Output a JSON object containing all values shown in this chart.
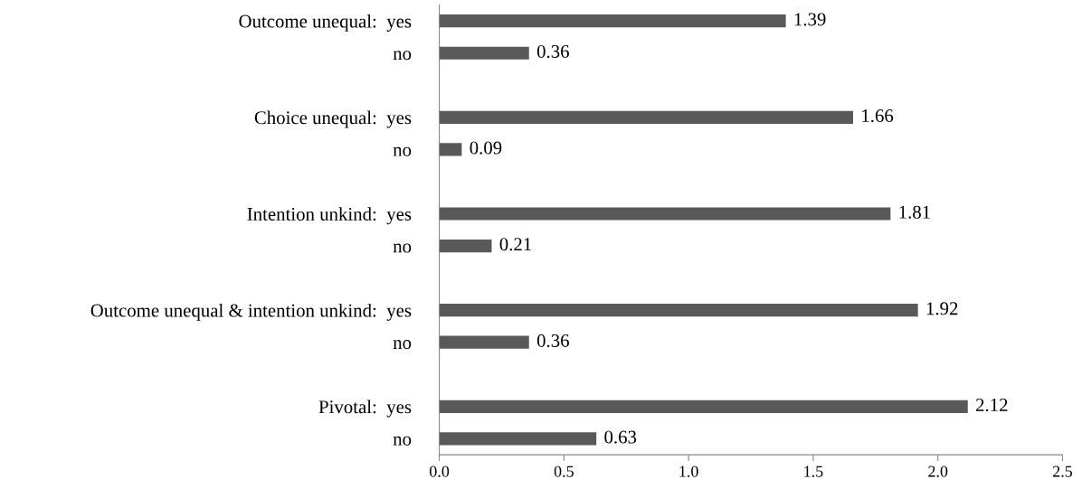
{
  "chart_data": {
    "type": "bar",
    "orientation": "horizontal",
    "categories": [
      "Outcome unequal:  yes",
      "no",
      null,
      "Choice unequal:  yes",
      "no",
      null,
      "Intention unkind:  yes",
      "no",
      null,
      "Outcome unequal & intention unkind:  yes",
      "no",
      null,
      "Pivotal:  yes",
      "no"
    ],
    "values": [
      1.39,
      0.36,
      null,
      1.66,
      0.09,
      null,
      1.81,
      0.21,
      null,
      1.92,
      0.36,
      null,
      2.12,
      0.63
    ],
    "color": "#595959",
    "xlim": [
      0,
      2.5
    ],
    "xticks": [
      {
        "value": 0,
        "label": "0.0"
      },
      {
        "value": 0.5,
        "label": "0.5"
      },
      {
        "value": 1,
        "label": "1.0"
      },
      {
        "value": 1.5,
        "label": "1.5"
      },
      {
        "value": 2,
        "label": "2.0"
      },
      {
        "value": 2.5,
        "label": "2.5"
      }
    ],
    "data_labels": true,
    "grid": false,
    "legend": false
  }
}
